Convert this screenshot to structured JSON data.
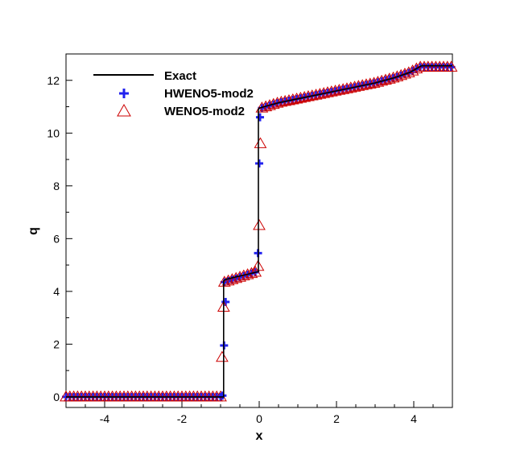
{
  "chart_data": {
    "type": "line",
    "title": "",
    "xlabel": "x",
    "ylabel": "q",
    "xlim": [
      -5,
      5
    ],
    "ylim": [
      -0.4,
      13
    ],
    "xticks_major": [
      -4,
      -2,
      0,
      2,
      4
    ],
    "xtick_labels": [
      "-4",
      "-2",
      "0",
      "2",
      "4"
    ],
    "yticks_major": [
      0,
      2,
      4,
      6,
      8,
      10,
      12
    ],
    "ytick_labels": [
      "0",
      "2",
      "4",
      "6",
      "8",
      "10",
      "12"
    ],
    "grid": false,
    "legend_position": "top-left",
    "legend": [
      {
        "label": "Exact",
        "marker": "line",
        "color": "#000000"
      },
      {
        "label": "HWENO5-mod2",
        "marker": "plus",
        "color": "#2222ee"
      },
      {
        "label": "WENO5-mod2",
        "marker": "triangle",
        "color": "#cc0000"
      }
    ],
    "series": [
      {
        "name": "Exact",
        "style": "line",
        "color": "#000000",
        "x": [
          -5,
          -0.92,
          -0.92,
          -0.87,
          -0.6,
          -0.3,
          -0.02,
          -0.02,
          0.0,
          0.5,
          1.0,
          1.5,
          2.0,
          2.5,
          3.0,
          3.5,
          3.9,
          4.2,
          4.5,
          5.0
        ],
        "y": [
          0,
          0,
          4.4,
          4.45,
          4.55,
          4.65,
          4.75,
          10.9,
          10.95,
          11.15,
          11.3,
          11.45,
          11.6,
          11.75,
          11.9,
          12.1,
          12.3,
          12.55,
          12.55,
          12.55
        ]
      },
      {
        "name": "HWENO5-mod2",
        "style": "plus",
        "color": "#2222ee",
        "x": [
          -0.95,
          -0.91,
          -0.87,
          -0.03,
          0.0,
          0.02
        ],
        "y": [
          0.05,
          1.95,
          3.6,
          5.45,
          8.85,
          10.6
        ]
      },
      {
        "name": "WENO5-mod2",
        "style": "triangle",
        "color": "#cc0000",
        "x": [
          -0.96,
          -0.92,
          -0.03,
          0.0,
          0.03
        ],
        "y": [
          1.5,
          3.4,
          4.95,
          6.5,
          9.6
        ]
      }
    ],
    "dense_markers": {
      "spacing": 0.1,
      "points": [
        [
          -5,
          0
        ],
        [
          -0.95,
          0
        ],
        [
          -0.9,
          4.35
        ],
        [
          -0.05,
          4.75
        ],
        [
          0.07,
          10.95
        ],
        [
          0.5,
          11.15
        ],
        [
          1.0,
          11.3
        ],
        [
          2.0,
          11.6
        ],
        [
          3.0,
          11.9
        ],
        [
          3.5,
          12.1
        ],
        [
          3.9,
          12.3
        ],
        [
          4.15,
          12.5
        ],
        [
          5.0,
          12.5
        ]
      ]
    }
  }
}
